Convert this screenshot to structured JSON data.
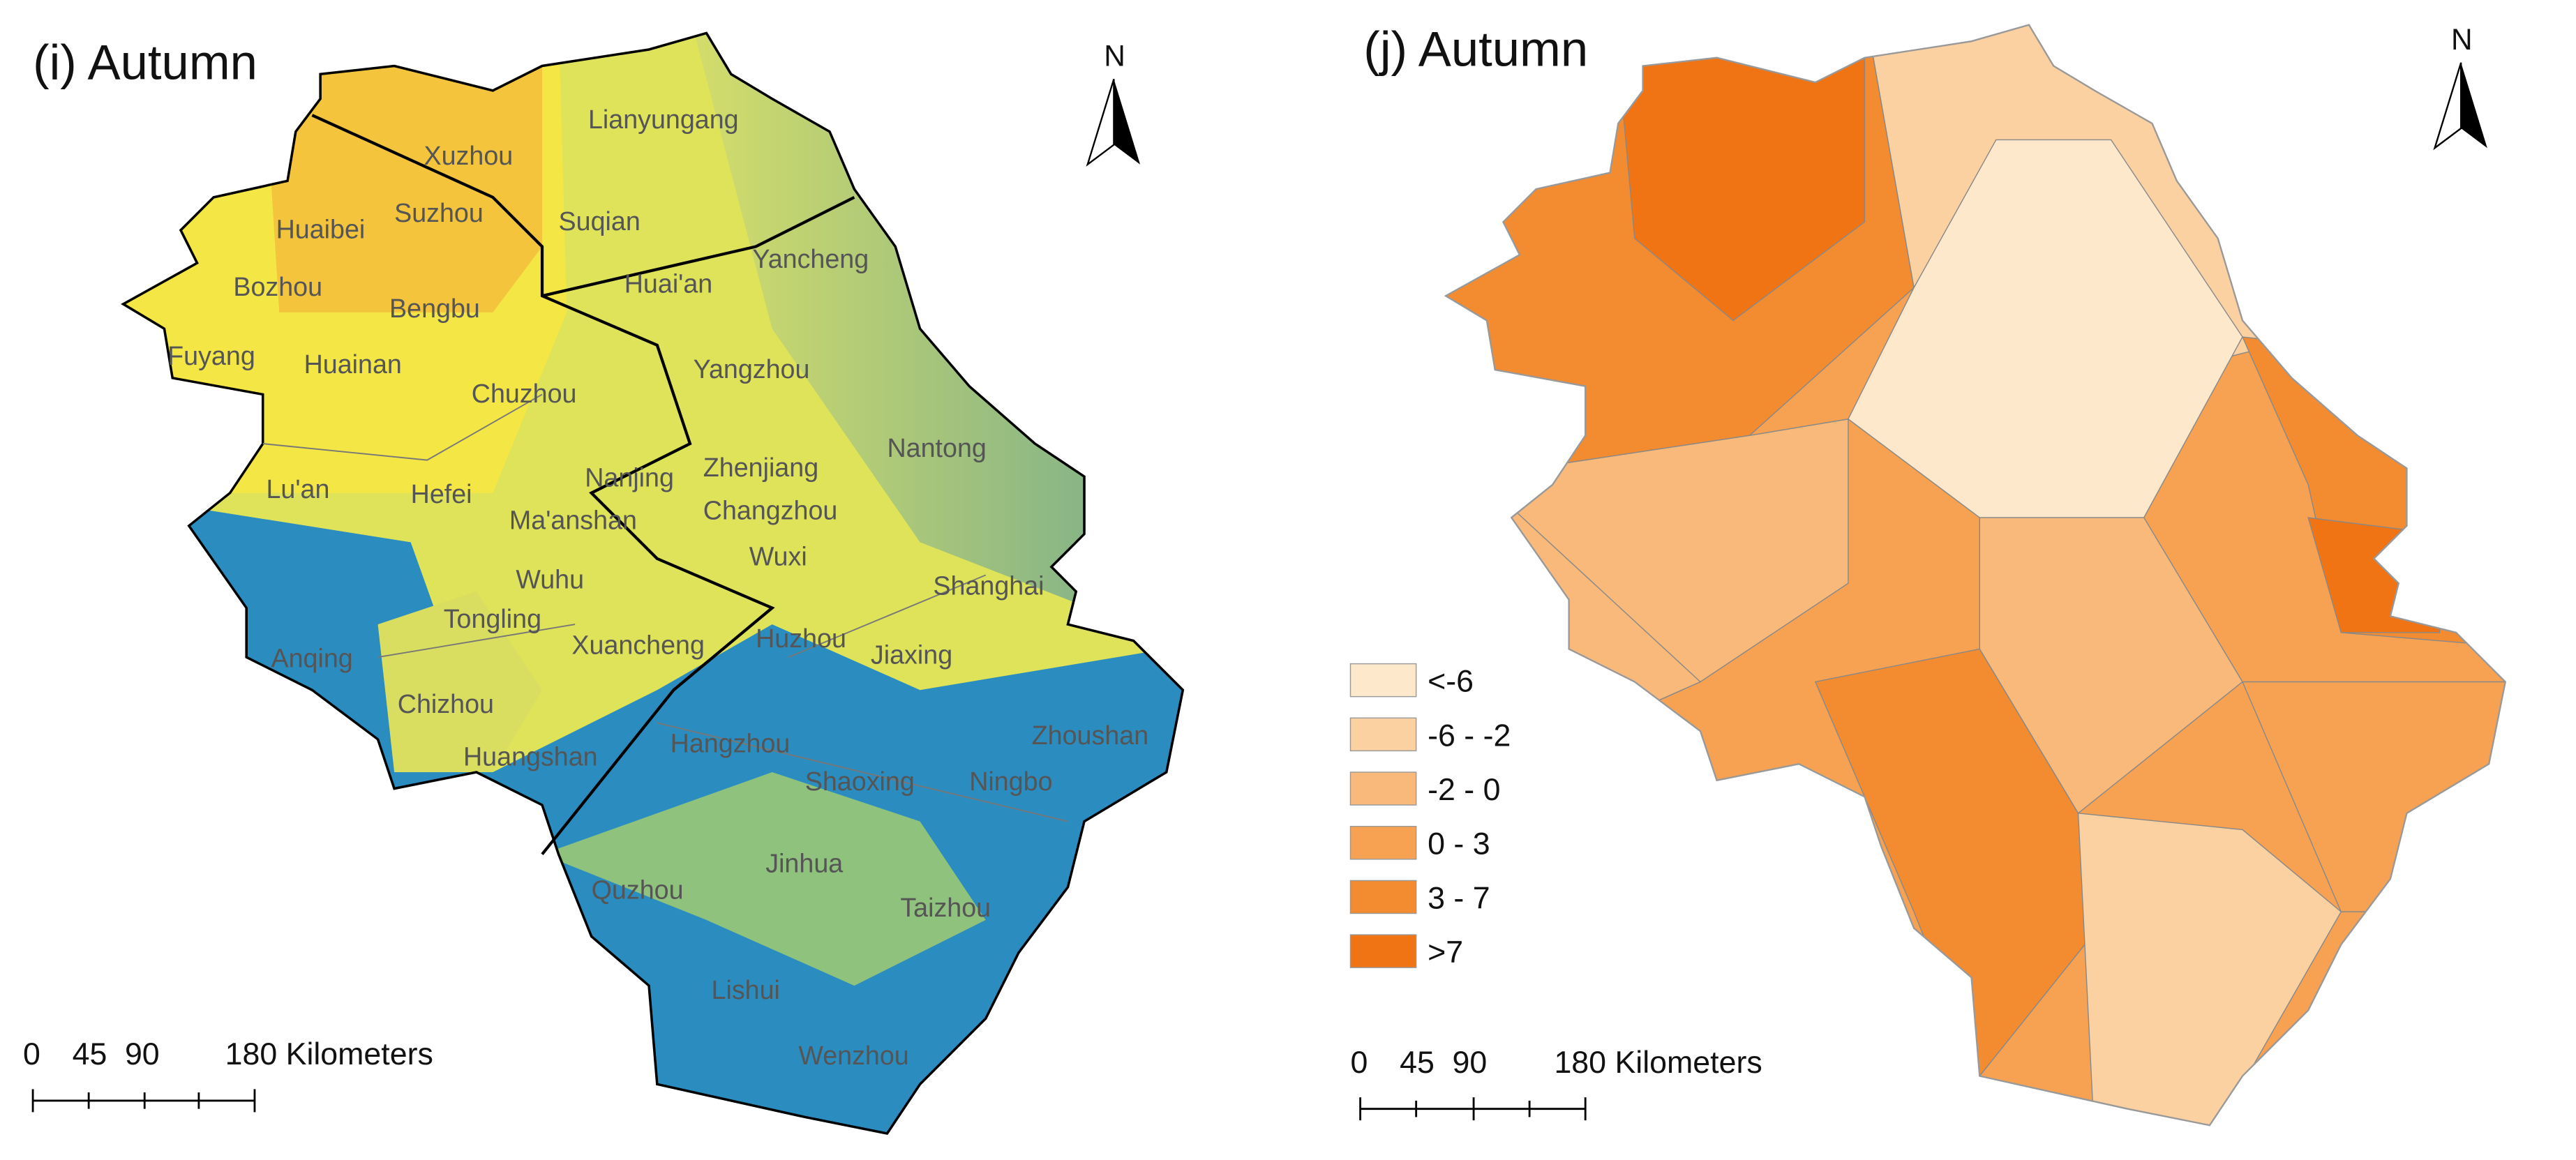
{
  "panels": [
    {
      "title": "(i) Autumn",
      "north": "N",
      "cities": [
        "Lianyungang",
        "Xuzhou",
        "Suzhou",
        "Suqian",
        "Huaibei",
        "Yancheng",
        "Bozhou",
        "Huai'an",
        "Bengbu",
        "Fuyang",
        "Huainan",
        "Yangzhou",
        "Chuzhou",
        "Nantong",
        "Zhenjiang",
        "Lu'an",
        "Hefei",
        "Nanjing",
        "Changzhou",
        "Ma'anshan",
        "Wuxi",
        "Shanghai",
        "Wuhu",
        "Tongling",
        "Xuancheng",
        "Huzhou",
        "Jiaxing",
        "Anqing",
        "Chizhou",
        "Zhoushan",
        "Hangzhou",
        "Huangshan",
        "Shaoxing",
        "Ningbo",
        "Jinhua",
        "Quzhou",
        "Taizhou",
        "Lishui",
        "Wenzhou"
      ],
      "scale_bar": {
        "ticks": [
          "0",
          "45",
          "90"
        ],
        "end": "180 Kilometers"
      }
    },
    {
      "title": "(j) Autumn",
      "north": "N",
      "legend": [
        {
          "label": "<-6",
          "color": "#fde8cc"
        },
        {
          "label": "-6 - -2",
          "color": "#fbd1a2"
        },
        {
          "label": "-2 - 0",
          "color": "#f9b97a"
        },
        {
          "label": "0 - 3",
          "color": "#f6a252"
        },
        {
          "label": "3 - 7",
          "color": "#f38b30"
        },
        {
          "label": ">7",
          "color": "#f07414"
        }
      ],
      "scale_bar": {
        "ticks": [
          "0",
          "45",
          "90"
        ],
        "end": "180 Kilometers"
      }
    }
  ]
}
